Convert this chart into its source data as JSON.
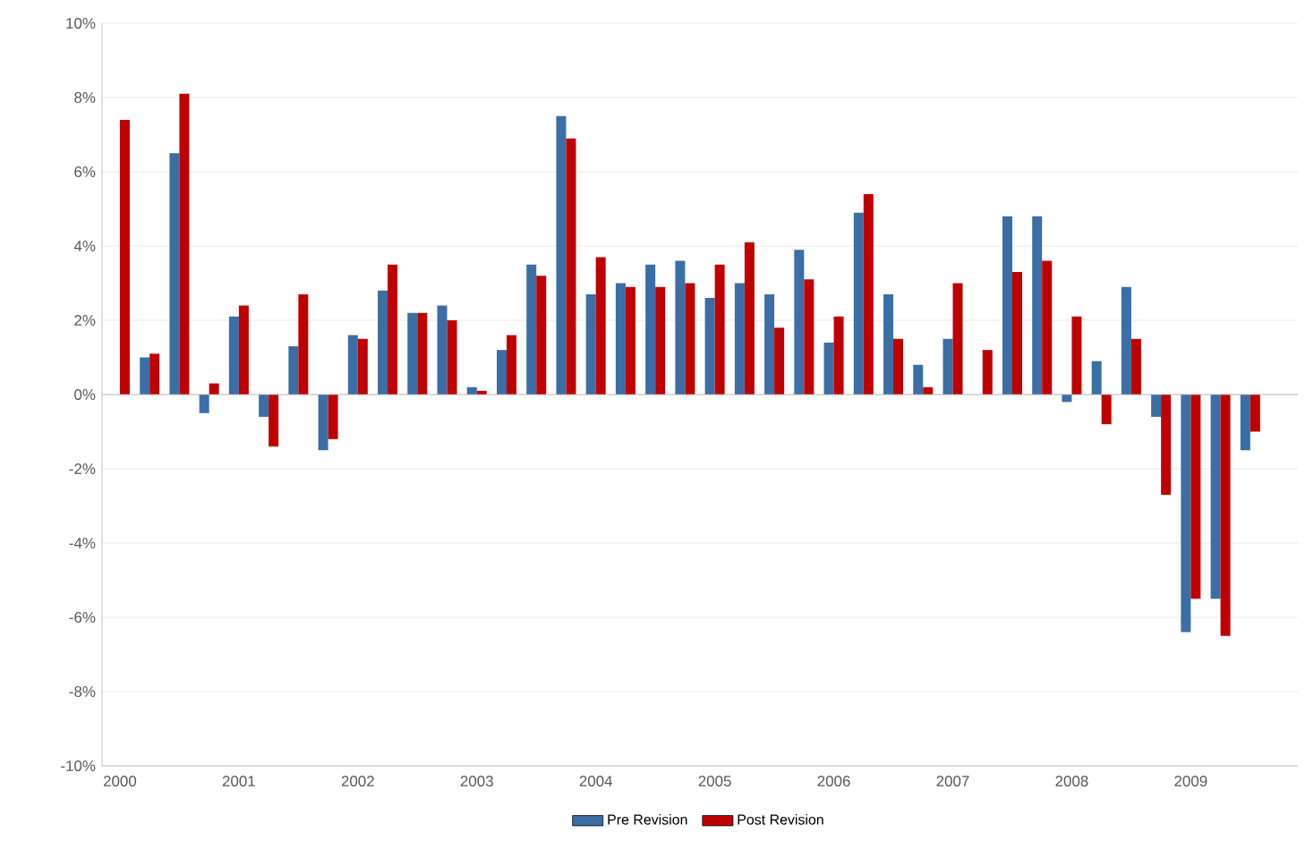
{
  "chart_data": {
    "type": "bar",
    "categories": [
      "2000",
      null,
      null,
      null,
      "2001",
      null,
      null,
      null,
      "2002",
      null,
      null,
      null,
      "2003",
      null,
      null,
      null,
      "2004",
      null,
      null,
      null,
      "2005",
      null,
      null,
      null,
      "2006",
      null,
      null,
      null,
      "2007",
      null,
      null,
      null,
      "2008",
      null,
      null,
      null,
      "2009",
      null,
      null,
      null
    ],
    "series": [
      {
        "name": "Pre Revision",
        "color": "#3a6ea5",
        "values": [
          null,
          1.0,
          6.5,
          -0.5,
          2.1,
          -0.6,
          1.3,
          -1.5,
          1.6,
          2.8,
          2.2,
          2.4,
          0.2,
          1.2,
          3.5,
          7.5,
          2.7,
          3.0,
          3.5,
          3.6,
          2.6,
          3.0,
          2.7,
          3.9,
          1.4,
          4.9,
          2.7,
          0.8,
          1.5,
          0.0,
          4.8,
          4.8,
          -0.2,
          0.9,
          2.9,
          -0.6,
          -6.4,
          -5.5,
          -1.5,
          null
        ]
      },
      {
        "name": "Post Revision",
        "color": "#c00000",
        "values": [
          7.4,
          1.1,
          8.1,
          0.3,
          2.4,
          -1.4,
          2.7,
          -1.2,
          1.5,
          3.5,
          2.2,
          2.0,
          0.1,
          1.6,
          3.2,
          6.9,
          3.7,
          2.9,
          2.9,
          3.0,
          3.5,
          4.1,
          1.8,
          3.1,
          2.1,
          5.4,
          1.5,
          0.2,
          3.0,
          1.2,
          3.3,
          3.6,
          2.1,
          -0.8,
          1.5,
          -2.7,
          -5.5,
          -6.5,
          -1.0,
          null
        ]
      }
    ],
    "ylim": [
      -10,
      10
    ],
    "yticks": [
      {
        "value": -10,
        "label": "-10%"
      },
      {
        "value": -8,
        "label": "-8%"
      },
      {
        "value": -6,
        "label": "-6%"
      },
      {
        "value": -4,
        "label": "-4%"
      },
      {
        "value": -2,
        "label": "-2%"
      },
      {
        "value": 0,
        "label": "0%"
      },
      {
        "value": 2,
        "label": "2%"
      },
      {
        "value": 4,
        "label": "4%"
      },
      {
        "value": 6,
        "label": "6%"
      },
      {
        "value": 8,
        "label": "8%"
      },
      {
        "value": 10,
        "label": "10%"
      }
    ],
    "grid": "y",
    "legend": "bottom"
  }
}
